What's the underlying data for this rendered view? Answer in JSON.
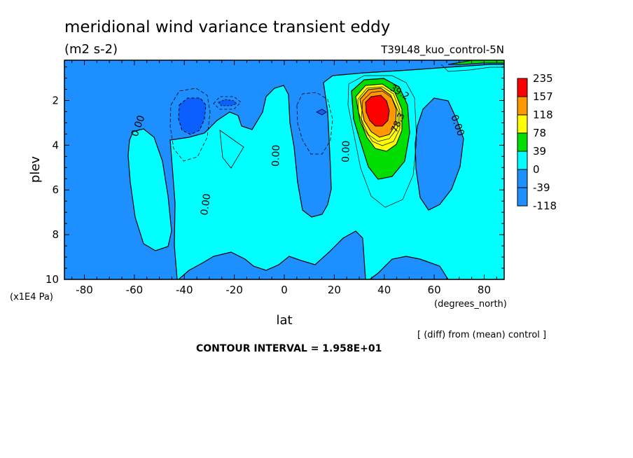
{
  "chart_data": {
    "type": "heatmap",
    "title": "meridional wind variance transient eddy",
    "units": "(m2 s-2)",
    "dataset": "T39L48_kuo_control-5N",
    "xlabel": "lat",
    "xunits": "(degrees_north)",
    "ylabel": "plev",
    "yunits": "(x1E4 Pa)",
    "xlim": [
      -88,
      88
    ],
    "ylim": [
      10,
      0.2
    ],
    "x_ticks": [
      -80,
      -60,
      -40,
      -20,
      0,
      20,
      40,
      60,
      80
    ],
    "y_ticks": [
      2,
      4,
      6,
      8,
      10
    ],
    "diff_note": "[ (diff) from (mean) control ]",
    "contour_interval": "CONTOUR INTERVAL = 1.958E+01",
    "colorbar": {
      "labels": [
        "235",
        "157",
        "118",
        "78",
        "39",
        "0",
        "-39",
        "-118"
      ],
      "colors": [
        "#ff0000",
        "#ff8c00",
        "#ffc000",
        "#ffff00",
        "#00e000",
        "#00ffff",
        "#1e90ff",
        "#0000ff"
      ],
      "display_colors": [
        "#ff0000",
        "#ff9900",
        "#ffff00",
        "#00dd00",
        "#00ffff",
        "#1e8fff",
        "#1e8fff",
        "#0b5fff"
      ]
    },
    "contour_labels": [
      {
        "text": "0.00",
        "lat": -57,
        "plev": 3.6
      },
      {
        "text": "0.00",
        "lat": -32,
        "plev": 7.0
      },
      {
        "text": "0.00",
        "lat": -2,
        "plev": 4.4
      },
      {
        "text": "0.00",
        "lat": 24,
        "plev": 4.2
      },
      {
        "text": "0.00",
        "lat": 68,
        "plev": 3.1
      },
      {
        "text": "39.2",
        "lat": 39,
        "plev": 1.6
      },
      {
        "text": "78.3",
        "lat": 42,
        "plev": 3.0
      }
    ],
    "features": [
      {
        "name": "positive maximum",
        "lat": 37,
        "plev": 2.5,
        "value_range": "> 157"
      },
      {
        "name": "negative minimum",
        "lat": -38,
        "plev": 2.8,
        "value_range": "-39 to -118"
      }
    ]
  }
}
